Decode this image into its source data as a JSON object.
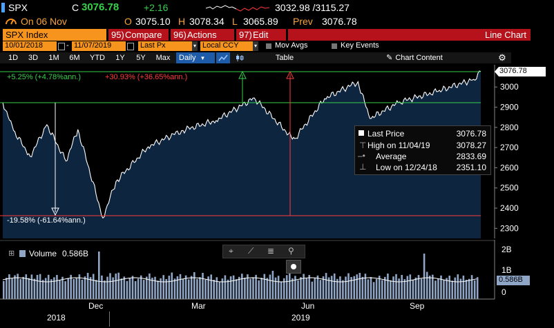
{
  "header": {
    "ticker": "SPX",
    "close_flag": "C",
    "last": "3076.78",
    "change": "+2.16",
    "range": "3032.98 /3115.27",
    "date_label": "On 06 Nov",
    "open_label": "O",
    "open": "3075.10",
    "high_label": "H",
    "high": "3078.34",
    "low_label": "L",
    "low": "3065.89",
    "prev_label": "Prev",
    "prev": "3076.78"
  },
  "menubar": {
    "security": "SPX Index",
    "compare_num": "95)",
    "compare": "Compare",
    "actions_num": "96)",
    "actions": "Actions",
    "edit_num": "97)",
    "edit": "Edit",
    "chart_title": "Line Chart"
  },
  "settings": {
    "start_date": "10/01/2018",
    "end_date": "11/07/2019",
    "field": "Last Px",
    "currency": "Local CCY",
    "mov_avgs": "Mov Avgs",
    "key_events": "Key Events"
  },
  "toolbar": {
    "periods": [
      "1D",
      "3D",
      "1M",
      "6M",
      "YTD",
      "1Y",
      "5Y",
      "Max"
    ],
    "frequency": "Daily",
    "table": "Table",
    "chart_content": "Chart Content"
  },
  "annotations": {
    "up_green": "+5.25% (+4.78%ann.)",
    "up_red": "+30.93% (+36.65%ann.)",
    "down": "-19.58% (-61.64%ann.)"
  },
  "legend": {
    "last_price_label": "Last Price",
    "last_price": "3076.78",
    "high_label": "High on 11/04/19",
    "high": "3078.27",
    "average_label": "Average",
    "average": "2833.69",
    "low_label": "Low on 12/24/18",
    "low": "2351.10"
  },
  "volume": {
    "label": "Volume",
    "value": "0.586B",
    "current": "0.586B"
  },
  "colors": {
    "accent_orange": "#f7941d",
    "up_green": "#37d04a",
    "down_red": "#ff3a3a",
    "chart_fill": "#0e2540",
    "volume_bar": "#8fa6c6"
  },
  "chart_data": [
    {
      "type": "area",
      "series": [
        {
          "name": "Last Price",
          "x": [
            "2018-10-01",
            "2018-10-10",
            "2018-10-24",
            "2018-11-07",
            "2018-11-23",
            "2018-12-03",
            "2018-12-24",
            "2019-01-04",
            "2019-01-31",
            "2019-02-28",
            "2019-03-29",
            "2019-04-30",
            "2019-05-31",
            "2019-06-03",
            "2019-06-28",
            "2019-07-26",
            "2019-08-05",
            "2019-08-30",
            "2019-09-30",
            "2019-10-31",
            "2019-11-06"
          ],
          "values": [
            2924,
            2785,
            2656,
            2813,
            2633,
            2790,
            2351,
            2532,
            2704,
            2784,
            2834,
            2946,
            2752,
            2744,
            2942,
            3026,
            2844,
            2926,
            2977,
            3038,
            3077
          ]
        }
      ],
      "y_ticks": [
        2300,
        2400,
        2500,
        2600,
        2700,
        2800,
        2900,
        3000
      ],
      "ylim": [
        2250,
        3110
      ],
      "x_ticks": [
        "Dec",
        "Mar",
        "Jun",
        "Sep"
      ],
      "x_years": [
        "2018",
        "2019"
      ],
      "reference_levels": [
        2925,
        3076.78,
        2351.1
      ],
      "grid": false
    },
    {
      "type": "bar",
      "series": [
        {
          "name": "Volume",
          "values": [
            3.4,
            3.6,
            4.0,
            4.3,
            4.5,
            3.9,
            3.7,
            3.4,
            3.3,
            3.8,
            4.2,
            4.5,
            5.0,
            4.1,
            3.6,
            3.2,
            3.4,
            3.6,
            3.2,
            3.0,
            2.9,
            3.1,
            3.3,
            3.5,
            3.7,
            4.0,
            3.1,
            3.6
          ]
        }
      ],
      "y_ticks": [
        "2B",
        "1B",
        "0"
      ],
      "ylim": [
        0,
        2.4
      ],
      "unit": "billions (scaled x0.1)"
    }
  ]
}
